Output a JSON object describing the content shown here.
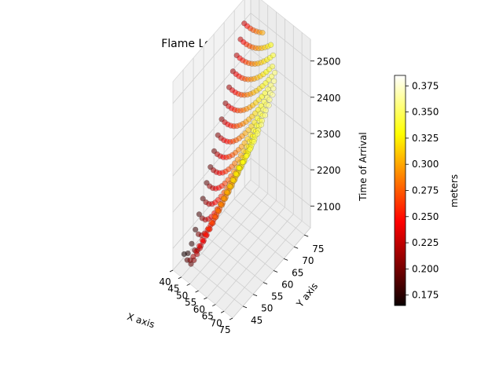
{
  "chart_data": {
    "type": "scatter",
    "projection": "3d",
    "title": "Flame Length",
    "xlabel": "X axis",
    "ylabel": "Y axis",
    "zlabel": "Time of Arrival",
    "x_ticks": [
      40,
      45,
      50,
      55,
      60,
      65,
      70,
      75
    ],
    "y_ticks": [
      45,
      50,
      55,
      60,
      65,
      70,
      75
    ],
    "z_ticks": [
      2100,
      2200,
      2300,
      2400,
      2500
    ],
    "xlim": [
      40,
      75
    ],
    "ylim": [
      40,
      78
    ],
    "zlim": [
      2040,
      2560
    ],
    "grid": true,
    "colormap": "hot",
    "colorbar": {
      "label": "meters",
      "ticks": [
        0.175,
        0.2,
        0.225,
        0.25,
        0.275,
        0.3,
        0.325,
        0.35,
        0.375
      ],
      "tick_labels": [
        "0.175",
        "0.200",
        "0.225",
        "0.250",
        "0.275",
        "0.300",
        "0.325",
        "0.350",
        "0.375"
      ],
      "range": [
        0.165,
        0.385
      ]
    },
    "surface_model": {
      "description": "points on a grid of X 43-75, Y 43-76; time of arrival ~2040 at (45,45) rising to ~2530 toward the back corner; flame length ~0.17 near the low-X edge rising to ~0.38 toward high X / high Y",
      "x_range": [
        43,
        75
      ],
      "y_range": [
        43,
        76
      ],
      "grid_steps": 18
    }
  }
}
